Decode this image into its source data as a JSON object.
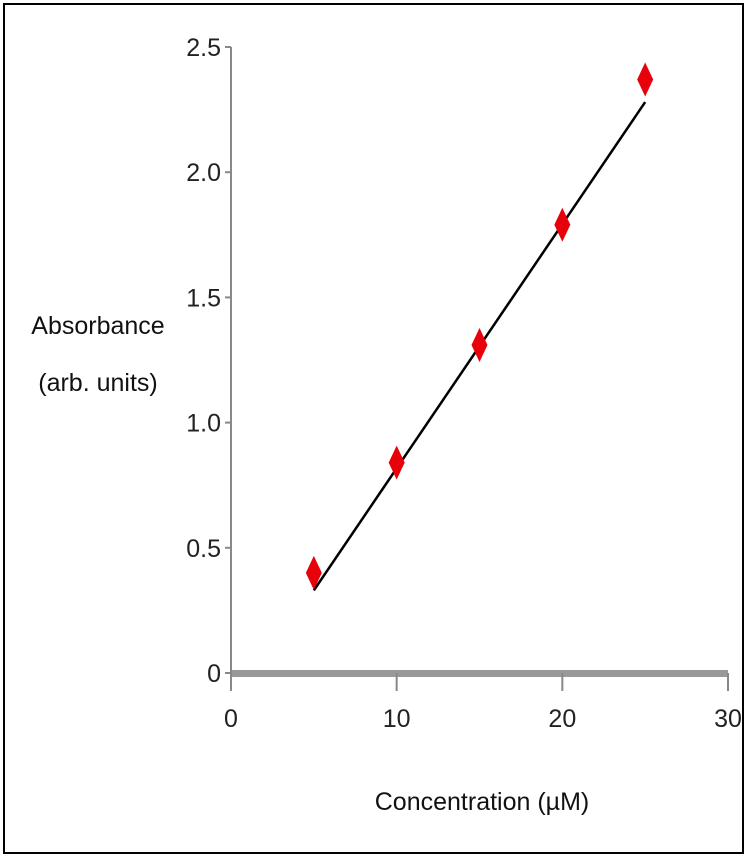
{
  "chart_data": {
    "type": "scatter",
    "xlabel": "Concentration (µM)",
    "ylabel_lines": [
      "Absorbance",
      "(arb. units)"
    ],
    "xlim": [
      0,
      30
    ],
    "ylim": [
      0,
      2.5
    ],
    "x_ticks": [
      0,
      10,
      20,
      30
    ],
    "x_tick_labels": [
      "0",
      "10",
      "20",
      "30"
    ],
    "y_ticks": [
      0,
      0.5,
      1.0,
      1.5,
      2.0,
      2.5
    ],
    "y_tick_labels": [
      "0",
      "0.5",
      "1.0",
      "1.5",
      "2.0",
      "2.5"
    ],
    "series": [
      {
        "x": [
          5,
          10,
          15,
          20,
          25
        ],
        "y": [
          0.4,
          0.84,
          1.31,
          1.79,
          2.37
        ],
        "color": "#e8000b",
        "marker": "diamond"
      }
    ],
    "fit_line": {
      "x": [
        5,
        25
      ],
      "y": [
        0.33,
        2.28
      ],
      "color": "#000000"
    },
    "baseline_color": "#999999",
    "grid": false
  }
}
